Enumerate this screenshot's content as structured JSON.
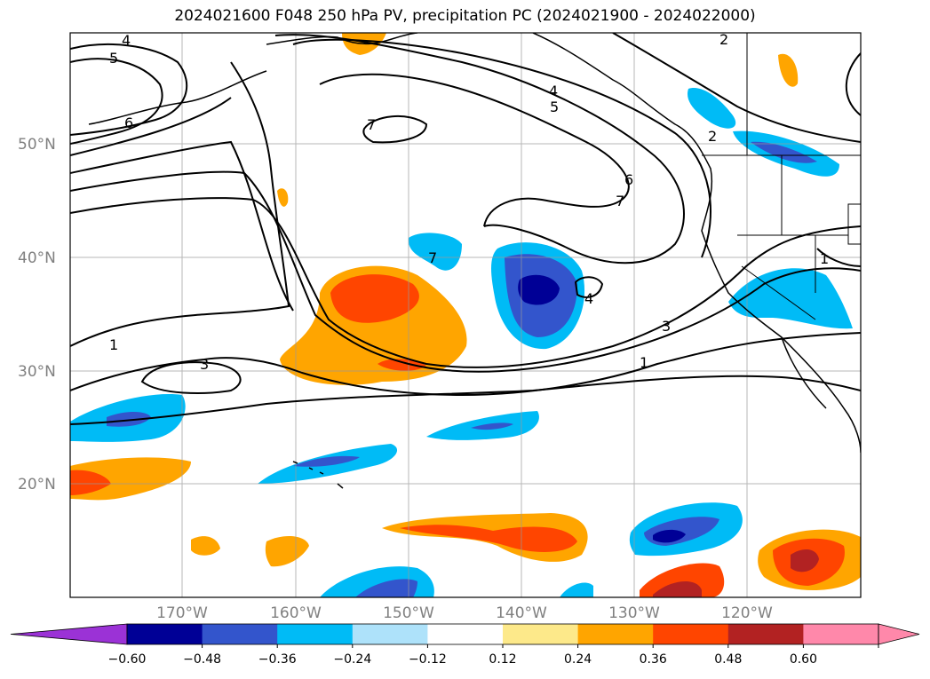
{
  "title": "2024021600 F048 250 hPa PV, precipitation PC (2024021900 - 2024022000)",
  "lat_labels": [
    "50°N",
    "40°N",
    "30°N",
    "20°N"
  ],
  "lon_labels": [
    "170°W",
    "160°W",
    "150°W",
    "140°W",
    "130°W",
    "120°W"
  ],
  "contour_labels": [
    "4",
    "5",
    "6",
    "7",
    "2",
    "4",
    "5",
    "2",
    "6",
    "7",
    "7",
    "4",
    "3",
    "1",
    "1",
    "3",
    "1"
  ],
  "colorbar": {
    "ticks": [
      "−0.60",
      "−0.48",
      "−0.36",
      "−0.24",
      "−0.12",
      "0.12",
      "0.24",
      "0.36",
      "0.48",
      "0.60"
    ],
    "colors": [
      "#9b32d6",
      "#000096",
      "#3355cc",
      "#00bbf6",
      "#aee2fa",
      "#ffffff",
      "#fde98a",
      "#ffa500",
      "#ff4500",
      "#b22222",
      "#ff88aa"
    ]
  }
}
